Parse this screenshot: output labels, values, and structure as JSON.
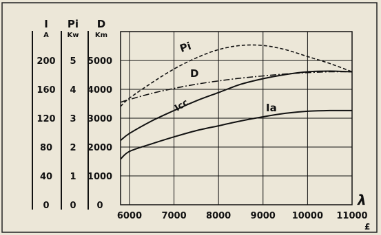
{
  "chart_data": {
    "type": "line",
    "xlabel": "λ",
    "x_ticks": [
      "6000",
      "7000",
      "8000",
      "9000",
      "10000",
      "11000"
    ],
    "xlim": [
      5800,
      11000
    ],
    "axes": [
      {
        "symbol": "I",
        "unit": "A",
        "ticks": [
          "0",
          "40",
          "80",
          "120",
          "160",
          "200"
        ],
        "range": [
          0,
          250
        ]
      },
      {
        "symbol": "Pi",
        "unit": "Kw",
        "ticks": [
          "0",
          "1",
          "2",
          "3",
          "4",
          "5"
        ],
        "range": [
          0,
          6.25
        ]
      },
      {
        "symbol": "D",
        "unit": "Km",
        "ticks": [
          "0",
          "1000",
          "2000",
          "3000",
          "4000",
          "5000"
        ],
        "range": [
          0,
          6250
        ]
      }
    ],
    "series": [
      {
        "name": "Pi",
        "axis": "Pi",
        "style": "dashed",
        "x": [
          5800,
          6000,
          6500,
          7000,
          7500,
          8000,
          8500,
          9000,
          9500,
          10000,
          10500,
          11000
        ],
        "y": [
          3.55,
          3.85,
          4.4,
          4.9,
          5.3,
          5.6,
          5.75,
          5.75,
          5.6,
          5.35,
          5.1,
          4.8
        ]
      },
      {
        "name": "D",
        "axis": "D",
        "style": "dash-dot",
        "x": [
          5800,
          6000,
          6500,
          7000,
          7500,
          8000,
          8500,
          9000,
          9500,
          10000,
          10500,
          11000
        ],
        "y": [
          3700,
          3800,
          4020,
          4200,
          4350,
          4470,
          4570,
          4650,
          4720,
          4770,
          4800,
          4800
        ]
      },
      {
        "name": "Icc",
        "axis": "I",
        "style": "solid",
        "x": [
          5800,
          6000,
          6500,
          7000,
          7500,
          8000,
          8500,
          9000,
          9500,
          10000,
          10500,
          11000
        ],
        "y": [
          93,
          103,
          121,
          136,
          150,
          162,
          174,
          182,
          188,
          192,
          193,
          192
        ]
      },
      {
        "name": "Ia",
        "axis": "I",
        "style": "solid",
        "x": [
          5800,
          6000,
          6500,
          7000,
          7500,
          8000,
          8500,
          9000,
          9500,
          10000,
          10500,
          11000
        ],
        "y": [
          66,
          77,
          88,
          98,
          107,
          114,
          121,
          127,
          132,
          135,
          136,
          136
        ]
      }
    ],
    "series_labels": [
      "Pi",
      "D",
      "Icc",
      "Ia"
    ],
    "grid": true,
    "colors": {
      "ink": "#111111",
      "paper": "#ece7d8"
    },
    "footnote": "£"
  }
}
